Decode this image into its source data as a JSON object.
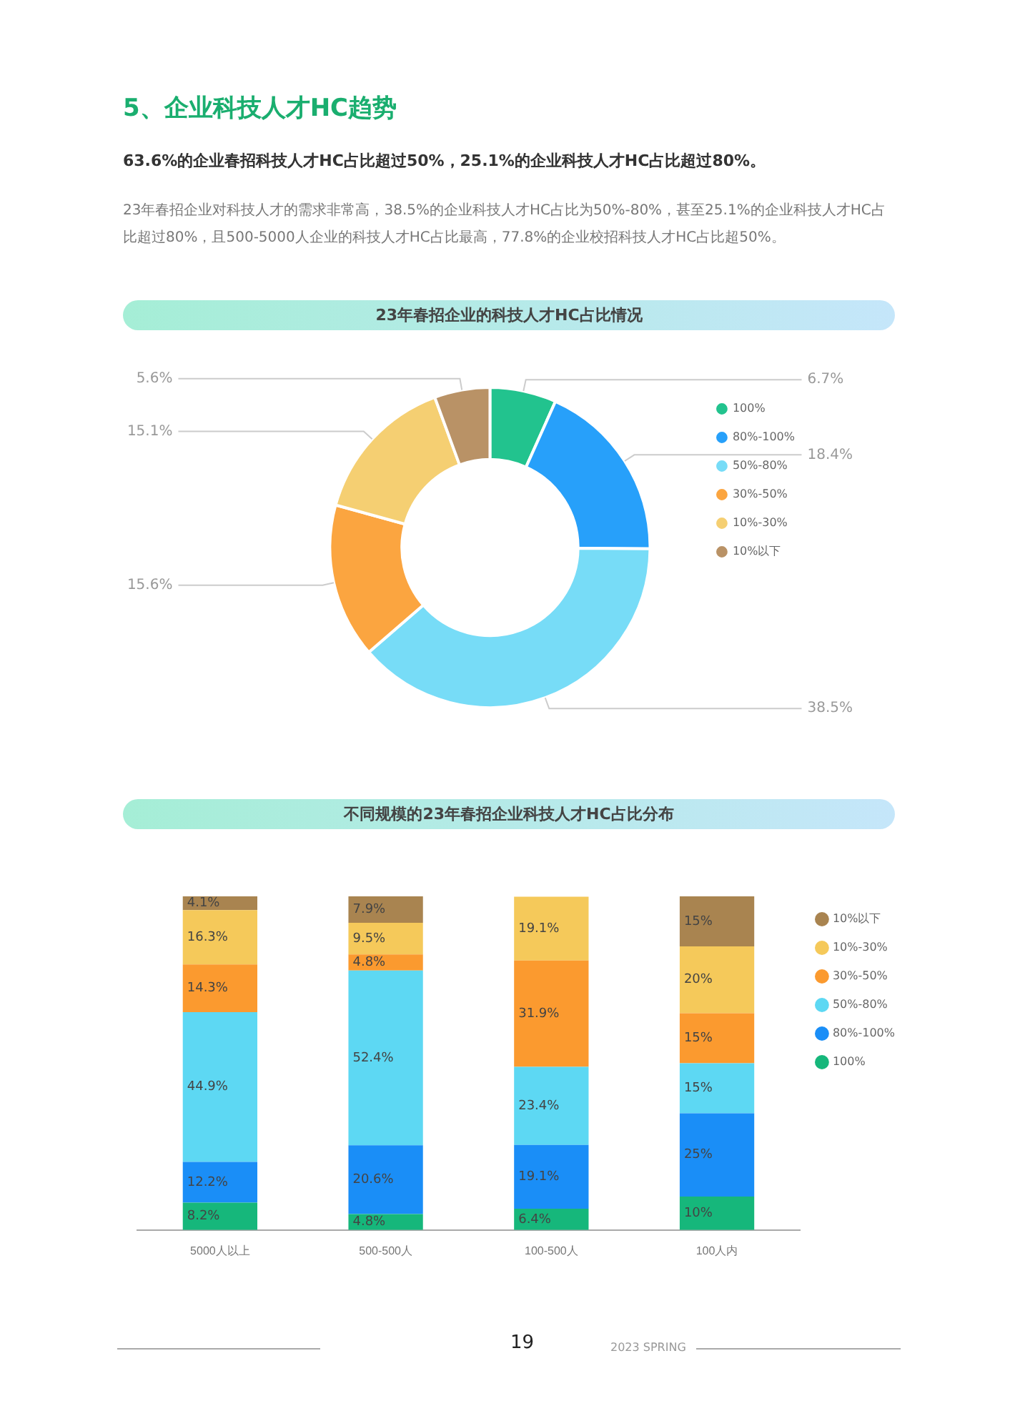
{
  "chart_data": [
    {
      "type": "donut",
      "title": "23年春招企业的科技人才HC占比情况",
      "annotations": [
        "5、企业科技人才HC趋势",
        "63.6%的企业春招科技人才HC占比超过50%，25.1%的企业科技人才HC占比超过80%。",
        "23年春招企业对科技人才的需求非常高，38.5%的企业科技人才HC占比为50%-80%，甚至25.1%的企业科技人才HC占比超过80%，且500-5000人企业的科技人才HC占比最高，77.8%的企业校招科技人才HC占比超50%。"
      ],
      "categories": [
        "100%",
        "80%-100%",
        "50%-80%",
        "30%-50%",
        "10%-30%",
        "10%以下"
      ],
      "values": [
        6.7,
        18.4,
        38.5,
        15.6,
        15.1,
        5.6
      ],
      "value_labels": [
        "6.7%",
        "18.4%",
        "38.5%",
        "15.6%",
        "15.1%",
        "5.6%"
      ],
      "colors": [
        "#22c38e",
        "#27a0fa",
        "#77dcf7",
        "#fba540",
        "#f5cf72",
        "#b99266"
      ],
      "legend": "top right"
    },
    {
      "type": "bar",
      "title": "不同规模的23年春招企业科技人才HC占比分布",
      "stacked": true,
      "legend": "top right",
      "grid": false,
      "annotations": [
        "19",
        "2023 SPRING"
      ],
      "categories": [
        "5000人以上",
        "500-500人",
        "100-500人",
        "100人内"
      ],
      "series": [
        {
          "name": "100%",
          "color": "#16b77b",
          "values": [
            8.2,
            4.8,
            6.4,
            10
          ],
          "value_labels": [
            "8.2%",
            "4.8%",
            "6.4%",
            "10%"
          ]
        },
        {
          "name": "80%-100%",
          "color": "#1a8ef7",
          "values": [
            12.2,
            20.6,
            19.1,
            25
          ],
          "value_labels": [
            "12.2%",
            "20.6%",
            "19.1%",
            "25%"
          ]
        },
        {
          "name": "50%-80%",
          "color": "#5dd8f3",
          "values": [
            44.9,
            52.4,
            23.4,
            15
          ],
          "value_labels": [
            "44.9%",
            "52.4%",
            "23.4%",
            "15%"
          ]
        },
        {
          "name": "30%-50%",
          "color": "#fb9a2f",
          "values": [
            14.3,
            4.8,
            31.9,
            15
          ],
          "value_labels": [
            "14.3%",
            "4.8%",
            "31.9%",
            "15%"
          ]
        },
        {
          "name": "10%-30%",
          "color": "#f5c95a",
          "values": [
            16.3,
            9.5,
            19.1,
            20
          ],
          "value_labels": [
            "16.3%",
            "9.5%",
            "19.1%",
            "20%"
          ]
        },
        {
          "name": "10%以下",
          "color": "#a98450",
          "values": [
            4.1,
            7.9,
            null,
            15
          ],
          "value_labels": [
            "4.1%",
            "7.9%",
            null,
            "15%"
          ]
        }
      ]
    }
  ]
}
